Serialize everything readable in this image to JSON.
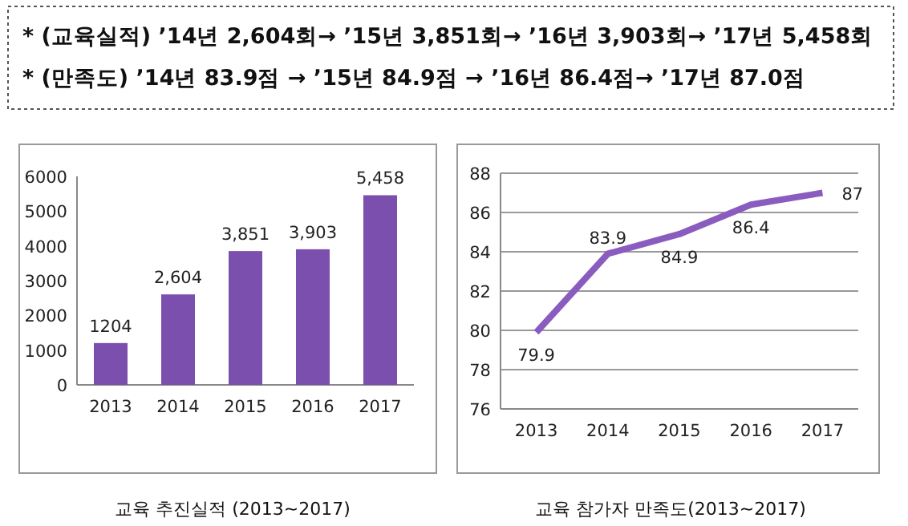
{
  "chart_data": [
    {
      "type": "other",
      "annotations": [
        "* (교육실적) ’14년 2,604회→ ’15년 3,851회→ ’16년 3,903회→  ’17년  5,458회",
        "* (만족도) ’14년 83.9점  → ’15년 84.9점 → ’16년 86.4점→ ’17년 87.0점"
      ]
    },
    {
      "type": "bar",
      "title": "교육 추진실적 (2013~2017)",
      "categories": [
        "2013",
        "2014",
        "2015",
        "2016",
        "2017"
      ],
      "values": [
        1204,
        2604,
        3851,
        3903,
        5458
      ],
      "value_labels": [
        "1204",
        "2,604",
        "3,851",
        "3,903",
        "5,458"
      ],
      "color": "#7b4fae",
      "ylim": [
        0,
        6000
      ],
      "yticks": [
        0,
        1000,
        2000,
        3000,
        4000,
        5000,
        6000
      ],
      "grid": false
    },
    {
      "type": "line",
      "title": "교육 참가자 만족도(2013~2017)",
      "categories": [
        "2013",
        "2014",
        "2015",
        "2016",
        "2017"
      ],
      "values": [
        79.9,
        83.9,
        84.9,
        86.4,
        87
      ],
      "value_labels": [
        "79.9",
        "83.9",
        "84.9",
        "86.4",
        "87"
      ],
      "color": "#8b5cbf",
      "ylim": [
        76,
        88
      ],
      "yticks": [
        76,
        78,
        80,
        82,
        84,
        86,
        88
      ],
      "grid": "y",
      "marker": "none"
    }
  ]
}
